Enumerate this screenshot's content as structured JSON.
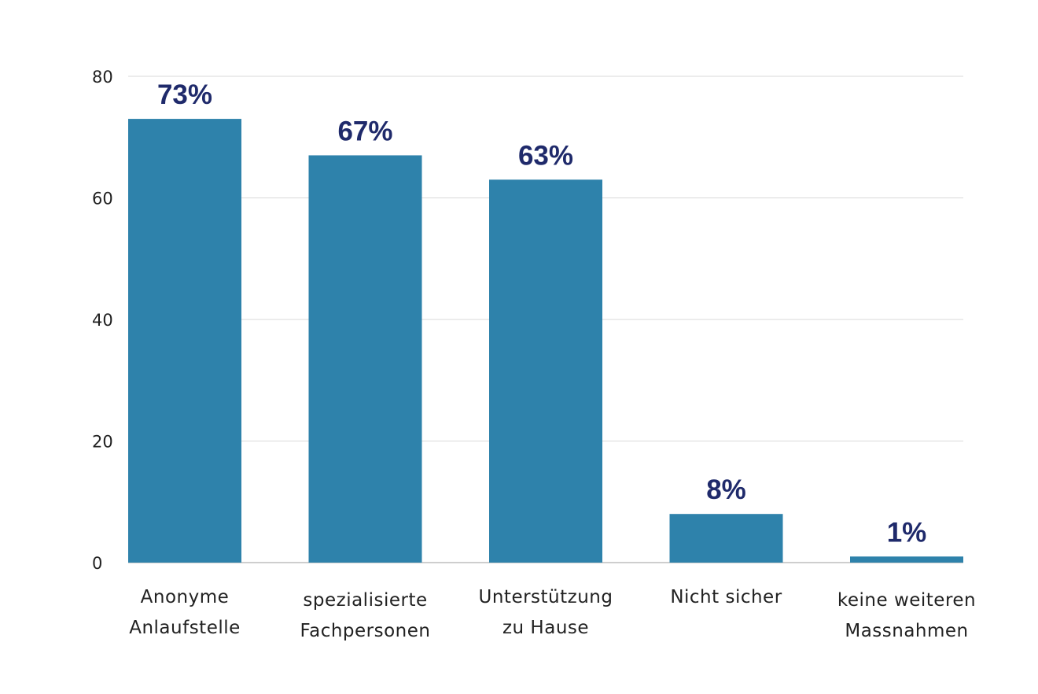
{
  "chart_data": {
    "type": "bar",
    "categories": [
      [
        "Anonyme",
        "Anlaufstelle"
      ],
      [
        "spezialisierte",
        "Fachpersonen"
      ],
      [
        "Unterstützung",
        "zu Hause"
      ],
      [
        "Nicht sicher"
      ],
      [
        "keine weiteren",
        "Massnahmen"
      ]
    ],
    "values": [
      73,
      67,
      63,
      8,
      1
    ],
    "data_labels": [
      "73%",
      "67%",
      "63%",
      "8%",
      "1%"
    ],
    "ylim": [
      0,
      80
    ],
    "yticks": [
      0,
      20,
      40,
      60,
      80
    ],
    "ytick_labels": [
      "0",
      "20",
      "40",
      "60",
      "80"
    ],
    "grid": true,
    "legend": "none",
    "colors": {
      "bar": "#2e82ab",
      "label": "#1f2a6b",
      "grid": "#d9d9d9",
      "axis": "#bdbdbd"
    }
  }
}
